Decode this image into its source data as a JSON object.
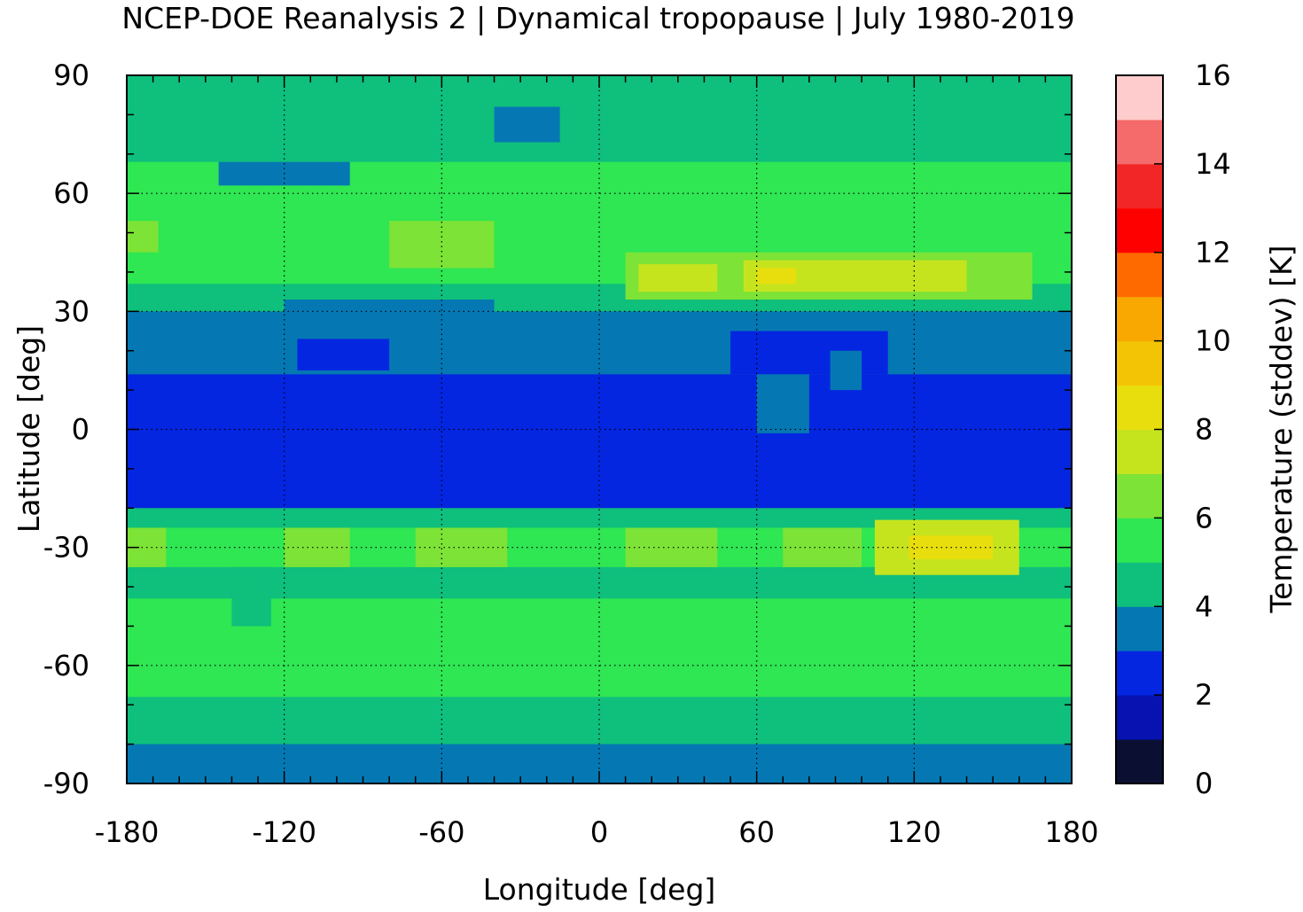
{
  "chart_data": {
    "type": "heatmap",
    "title": "NCEP-DOE Reanalysis 2 | Dynamical tropopause | July 1980-2019",
    "xlabel": "Longitude [deg]",
    "ylabel": "Latitude [deg]",
    "colorbar_label": "Temperature (stddev) [K]",
    "xlim": [
      -180,
      180
    ],
    "ylim": [
      -90,
      90
    ],
    "xticks": [
      -180,
      -120,
      -60,
      0,
      60,
      120,
      180
    ],
    "yticks": [
      90,
      60,
      30,
      0,
      -30,
      -60,
      -90
    ],
    "grid": true,
    "colorbar": {
      "range": [
        0,
        16
      ],
      "tick_values": [
        0,
        2,
        4,
        6,
        8,
        10,
        12,
        14,
        16
      ],
      "levels": [
        {
          "min": 0,
          "max": 1,
          "color": "#0b1033"
        },
        {
          "min": 1,
          "max": 2,
          "color": "#0712b0"
        },
        {
          "min": 2,
          "max": 3,
          "color": "#0426e0"
        },
        {
          "min": 3,
          "max": 4,
          "color": "#0578b4"
        },
        {
          "min": 4,
          "max": 5,
          "color": "#0fbf7c"
        },
        {
          "min": 5,
          "max": 6,
          "color": "#2fe653"
        },
        {
          "min": 6,
          "max": 7,
          "color": "#7de336"
        },
        {
          "min": 7,
          "max": 8,
          "color": "#c6e41e"
        },
        {
          "min": 8,
          "max": 9,
          "color": "#e8de0d"
        },
        {
          "min": 9,
          "max": 10,
          "color": "#f3c405"
        },
        {
          "min": 10,
          "max": 11,
          "color": "#f8a800"
        },
        {
          "min": 11,
          "max": 12,
          "color": "#ff6a00"
        },
        {
          "min": 12,
          "max": 13,
          "color": "#ff0000"
        },
        {
          "min": 13,
          "max": 14,
          "color": "#f22626"
        },
        {
          "min": 14,
          "max": 15,
          "color": "#f56a6a"
        },
        {
          "min": 15,
          "max": 16,
          "color": "#fecccc"
        }
      ]
    },
    "zonal_bands": [
      {
        "lat": [
          81,
          90
        ],
        "value": 4.5
      },
      {
        "lat": [
          68,
          81
        ],
        "value": 4.5
      },
      {
        "lat": [
          57,
          68
        ],
        "value": 5.5
      },
      {
        "lat": [
          49,
          57
        ],
        "value": 5.5
      },
      {
        "lat": [
          43,
          49
        ],
        "value": 5.5
      },
      {
        "lat": [
          37,
          43
        ],
        "value": 5.5
      },
      {
        "lat": [
          30,
          37
        ],
        "value": 4.5
      },
      {
        "lat": [
          22,
          30
        ],
        "value": 3.5
      },
      {
        "lat": [
          14,
          22
        ],
        "value": 3.5
      },
      {
        "lat": [
          -20,
          14
        ],
        "value": 2.5
      },
      {
        "lat": [
          -25,
          -20
        ],
        "value": 4.5
      },
      {
        "lat": [
          -35,
          -25
        ],
        "value": 5.5
      },
      {
        "lat": [
          -43,
          -35
        ],
        "value": 4.5
      },
      {
        "lat": [
          -52,
          -43
        ],
        "value": 5.5
      },
      {
        "lat": [
          -62,
          -52
        ],
        "value": 5.5
      },
      {
        "lat": [
          -68,
          -62
        ],
        "value": 5.5
      },
      {
        "lat": [
          -80,
          -68
        ],
        "value": 4.5
      },
      {
        "lat": [
          -90,
          -80
        ],
        "value": 3.5
      }
    ],
    "regions": [
      {
        "lon": [
          -180,
          -165
        ],
        "lat": [
          -35,
          -25
        ],
        "value": 6.5
      },
      {
        "lon": [
          -120,
          -95
        ],
        "lat": [
          -35,
          -25
        ],
        "value": 6.5
      },
      {
        "lon": [
          -70,
          -35
        ],
        "lat": [
          -35,
          -25
        ],
        "value": 6.5
      },
      {
        "lon": [
          10,
          45
        ],
        "lat": [
          -35,
          -25
        ],
        "value": 6.5
      },
      {
        "lon": [
          70,
          100
        ],
        "lat": [
          -35,
          -25
        ],
        "value": 6.5
      },
      {
        "lon": [
          105,
          160
        ],
        "lat": [
          -37,
          -23
        ],
        "value": 7.5
      },
      {
        "lon": [
          118,
          150
        ],
        "lat": [
          -33,
          -27
        ],
        "value": 8.5
      },
      {
        "lon": [
          -80,
          -40
        ],
        "lat": [
          41,
          53
        ],
        "value": 6.5
      },
      {
        "lon": [
          -180,
          -168
        ],
        "lat": [
          45,
          53
        ],
        "value": 6.5
      },
      {
        "lon": [
          10,
          165
        ],
        "lat": [
          33,
          45
        ],
        "value": 6.5
      },
      {
        "lon": [
          15,
          45
        ],
        "lat": [
          35,
          42
        ],
        "value": 7.5
      },
      {
        "lon": [
          55,
          140
        ],
        "lat": [
          35,
          43
        ],
        "value": 7.5
      },
      {
        "lon": [
          60,
          75
        ],
        "lat": [
          37,
          41
        ],
        "value": 8.5
      },
      {
        "lon": [
          -140,
          -125
        ],
        "lat": [
          -50,
          -35
        ],
        "value": 4.5
      },
      {
        "lon": [
          -145,
          -95
        ],
        "lat": [
          62,
          68
        ],
        "value": 3.5
      },
      {
        "lon": [
          -40,
          -15
        ],
        "lat": [
          73,
          82
        ],
        "value": 3.5
      },
      {
        "lon": [
          -115,
          -80
        ],
        "lat": [
          15,
          32
        ],
        "value": 2.5
      },
      {
        "lon": [
          50,
          110
        ],
        "lat": [
          14,
          25
        ],
        "value": 2.5
      },
      {
        "lon": [
          60,
          80
        ],
        "lat": [
          -1,
          14
        ],
        "value": 3.5
      },
      {
        "lon": [
          88,
          100
        ],
        "lat": [
          10,
          20
        ],
        "value": 3.5
      },
      {
        "lon": [
          -120,
          -40
        ],
        "lat": [
          23,
          33
        ],
        "value": 3.5
      }
    ]
  }
}
